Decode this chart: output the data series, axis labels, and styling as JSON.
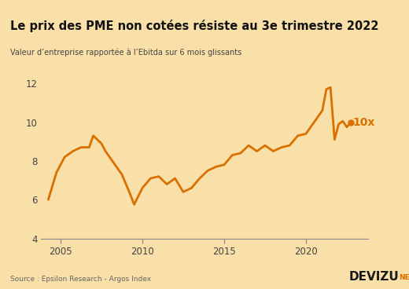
{
  "title": "Le prix des PME non cotées résiste au 3e trimestre 2022",
  "subtitle": "Valeur d’entreprise rapportée à l’Ebitda sur 6 mois glissants",
  "source": "Source : Epsilon Research - Argos Index",
  "annotation_label": "10x",
  "background_color": "#f9dfa8",
  "title_bg_color": "#ffffff",
  "line_color": "#d97000",
  "annotation_color": "#d97000",
  "axis_color": "#888888",
  "tick_color": "#444444",
  "ylim": [
    4,
    12.8
  ],
  "yticks": [
    4,
    6,
    8,
    10,
    12
  ],
  "xlim": [
    2003.8,
    2023.8
  ],
  "xticks": [
    2005,
    2010,
    2015,
    2020
  ],
  "years": [
    2004.25,
    2004.75,
    2005.25,
    2005.75,
    2006.25,
    2006.75,
    2007.0,
    2007.5,
    2007.75,
    2008.0,
    2008.5,
    2008.75,
    2009.25,
    2009.5,
    2010.0,
    2010.5,
    2011.0,
    2011.5,
    2012.0,
    2012.5,
    2013.0,
    2013.5,
    2014.0,
    2014.5,
    2015.0,
    2015.5,
    2016.0,
    2016.5,
    2017.0,
    2017.5,
    2018.0,
    2018.5,
    2019.0,
    2019.5,
    2020.0,
    2020.5,
    2021.0,
    2021.25,
    2021.5,
    2021.75,
    2022.0,
    2022.25,
    2022.5,
    2022.75
  ],
  "values": [
    6.0,
    7.4,
    8.2,
    8.5,
    8.7,
    8.7,
    9.3,
    8.9,
    8.5,
    8.2,
    7.6,
    7.3,
    6.3,
    5.75,
    6.6,
    7.1,
    7.2,
    6.8,
    7.1,
    6.4,
    6.6,
    7.1,
    7.5,
    7.7,
    7.8,
    8.3,
    8.4,
    8.8,
    8.5,
    8.8,
    8.5,
    8.7,
    8.8,
    9.3,
    9.4,
    10.0,
    10.6,
    11.7,
    11.8,
    9.1,
    9.9,
    10.05,
    9.75,
    10.0
  ]
}
